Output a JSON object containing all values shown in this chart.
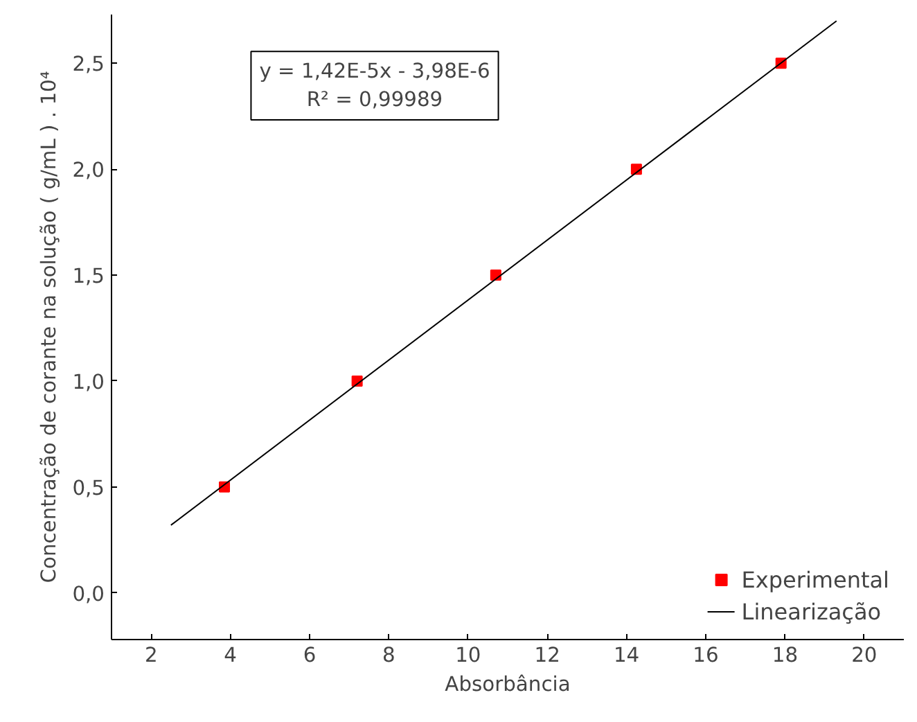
{
  "chart_data": {
    "type": "scatter",
    "xlabel": "Absorbância",
    "ylabel": "Concentração de corante na solução ( g/mL ) . 10⁴",
    "annotations": [
      "y = 1,42E-5x - 3,98E-6",
      "R² = 0,99989"
    ],
    "xlim": [
      1,
      21
    ],
    "xticks": [
      2,
      4,
      6,
      8,
      10,
      12,
      14,
      16,
      18,
      20
    ],
    "ylim": [
      -0.22,
      2.73
    ],
    "yticks": [
      {
        "value": 0,
        "label": "0,0"
      },
      {
        "value": 0.5,
        "label": "0,5"
      },
      {
        "value": 1,
        "label": "1,0"
      },
      {
        "value": 1.5,
        "label": "1,5"
      },
      {
        "value": 2,
        "label": "2,0"
      },
      {
        "value": 2.5,
        "label": "2,5"
      }
    ],
    "series": [
      {
        "name": "Experimental",
        "color": "#ff0000",
        "marker": "square",
        "x": [
          3.85,
          7.2,
          10.7,
          14.25,
          17.9
        ],
        "values": [
          0.5,
          1.0,
          1.5,
          2.0,
          2.5
        ]
      },
      {
        "name": "Linearização",
        "type": "line",
        "color": "#000000",
        "line_style": "solid",
        "x": [
          2.5,
          19.3
        ],
        "values": [
          0.32,
          2.7
        ]
      }
    ],
    "grid": false,
    "legend": "bottom right"
  }
}
